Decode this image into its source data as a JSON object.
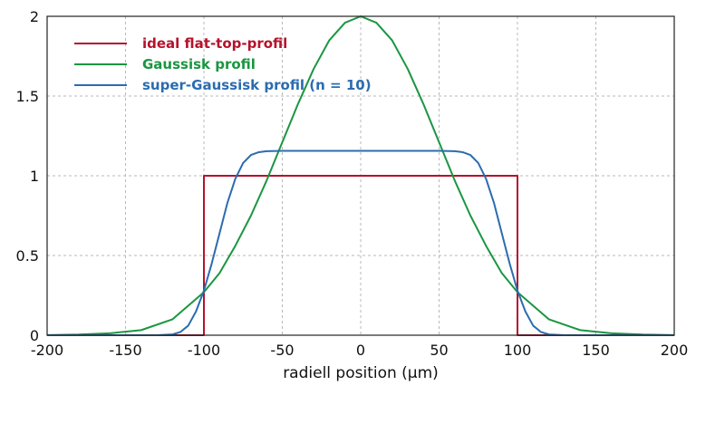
{
  "chart_data": {
    "type": "line",
    "title": "",
    "xlabel": "radiell position (µm)",
    "ylabel": "",
    "xlim": [
      -200,
      200
    ],
    "ylim": [
      0,
      2
    ],
    "xticks": [
      -200,
      -150,
      -100,
      -50,
      0,
      50,
      100,
      150,
      200
    ],
    "xtick_labels": [
      "-200",
      "-150",
      "-100",
      "-50",
      "0",
      "50",
      "100",
      "150",
      "200"
    ],
    "yticks": [
      0,
      0.5,
      1,
      1.5,
      2
    ],
    "ytick_labels": [
      "0",
      "0.5",
      "1",
      "1.5",
      "2"
    ],
    "grid": true,
    "legend_position": "top-left",
    "series": [
      {
        "name": "ideal flat-top-profil",
        "color": "#b5122b",
        "x": [
          -200,
          -100,
          -100,
          100,
          100,
          200
        ],
        "y": [
          0,
          0,
          1,
          1,
          0,
          0
        ]
      },
      {
        "name": "Gaussisk profil",
        "color": "#1a9641",
        "x": [
          -200,
          -180,
          -160,
          -140,
          -120,
          -100,
          -90,
          -80,
          -70,
          -60,
          -50,
          -40,
          -30,
          -20,
          -10,
          0,
          10,
          20,
          30,
          40,
          50,
          60,
          70,
          80,
          90,
          100,
          120,
          140,
          160,
          180,
          200
        ],
        "y": [
          0.001,
          0.004,
          0.012,
          0.032,
          0.1,
          0.27,
          0.39,
          0.56,
          0.75,
          0.97,
          1.21,
          1.45,
          1.67,
          1.85,
          1.96,
          2.0,
          1.96,
          1.85,
          1.67,
          1.45,
          1.21,
          0.97,
          0.75,
          0.56,
          0.39,
          0.27,
          0.1,
          0.032,
          0.012,
          0.004,
          0.001
        ]
      },
      {
        "name": "super-Gaussisk profil (n = 10)",
        "color": "#2b6cb0",
        "x": [
          -200,
          -130,
          -120,
          -115,
          -110,
          -105,
          -100,
          -95,
          -90,
          -85,
          -80,
          -75,
          -70,
          -65,
          -60,
          -50,
          -40,
          0,
          40,
          50,
          60,
          65,
          70,
          75,
          80,
          85,
          90,
          95,
          100,
          105,
          110,
          115,
          120,
          130,
          200
        ],
        "y": [
          0,
          0,
          0.005,
          0.02,
          0.06,
          0.15,
          0.28,
          0.45,
          0.64,
          0.83,
          0.98,
          1.08,
          1.13,
          1.148,
          1.154,
          1.156,
          1.156,
          1.156,
          1.156,
          1.156,
          1.154,
          1.148,
          1.13,
          1.08,
          0.98,
          0.83,
          0.64,
          0.45,
          0.28,
          0.15,
          0.06,
          0.02,
          0.005,
          0,
          0
        ]
      }
    ]
  }
}
